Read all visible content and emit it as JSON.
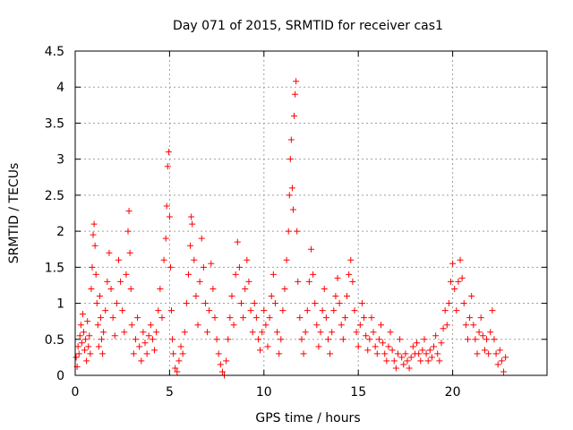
{
  "chart_data": {
    "type": "scatter",
    "title": "Day 071 of 2015, SRMTID for receiver cas1",
    "xlabel": "GPS time / hours",
    "ylabel": "SRMTID / TECUs",
    "xlim": [
      0,
      25
    ],
    "ylim": [
      0,
      4.5
    ],
    "x_ticks": [
      0,
      5,
      10,
      15,
      20
    ],
    "y_ticks": [
      0,
      0.5,
      1,
      1.5,
      2,
      2.5,
      3,
      3.5,
      4,
      4.5
    ],
    "x_tick_labels": [
      "0",
      "5",
      "10",
      "15",
      "20"
    ],
    "y_tick_labels": [
      "0",
      "0.5",
      "1",
      "1.5",
      "2",
      "2.5",
      "3",
      "3.5",
      "4",
      "4.5"
    ],
    "grid": true,
    "marker": "+",
    "series": [
      {
        "name": "SRMTID",
        "color": "#ff0000",
        "points": [
          [
            0.05,
            0.25
          ],
          [
            0.1,
            0.12
          ],
          [
            0.15,
            0.4
          ],
          [
            0.2,
            0.3
          ],
          [
            0.25,
            0.55
          ],
          [
            0.3,
            0.7
          ],
          [
            0.35,
            0.45
          ],
          [
            0.4,
            0.85
          ],
          [
            0.45,
            0.6
          ],
          [
            0.5,
            0.35
          ],
          [
            0.55,
            0.5
          ],
          [
            0.6,
            0.2
          ],
          [
            0.65,
            0.75
          ],
          [
            0.7,
            0.4
          ],
          [
            0.75,
            0.55
          ],
          [
            0.8,
            0.3
          ],
          [
            0.85,
            1.2
          ],
          [
            0.9,
            1.5
          ],
          [
            0.95,
            1.95
          ],
          [
            1.0,
            2.1
          ],
          [
            1.05,
            1.8
          ],
          [
            1.1,
            1.4
          ],
          [
            1.15,
            1.0
          ],
          [
            1.2,
            0.7
          ],
          [
            1.25,
            0.4
          ],
          [
            1.3,
            1.1
          ],
          [
            1.35,
            0.8
          ],
          [
            1.4,
            0.5
          ],
          [
            1.45,
            0.3
          ],
          [
            1.5,
            0.6
          ],
          [
            1.6,
            0.9
          ],
          [
            1.7,
            1.3
          ],
          [
            1.8,
            1.7
          ],
          [
            1.9,
            1.2
          ],
          [
            2.0,
            0.8
          ],
          [
            2.1,
            0.55
          ],
          [
            2.2,
            1.0
          ],
          [
            2.3,
            1.6
          ],
          [
            2.4,
            1.3
          ],
          [
            2.5,
            0.9
          ],
          [
            2.6,
            0.6
          ],
          [
            2.7,
            1.4
          ],
          [
            2.8,
            2.0
          ],
          [
            2.85,
            2.28
          ],
          [
            2.9,
            1.7
          ],
          [
            2.95,
            1.2
          ],
          [
            3.0,
            0.7
          ],
          [
            3.1,
            0.3
          ],
          [
            3.2,
            0.5
          ],
          [
            3.3,
            0.8
          ],
          [
            3.4,
            0.4
          ],
          [
            3.5,
            0.2
          ],
          [
            3.6,
            0.6
          ],
          [
            3.7,
            0.45
          ],
          [
            3.8,
            0.3
          ],
          [
            3.9,
            0.55
          ],
          [
            4.0,
            0.7
          ],
          [
            4.1,
            0.5
          ],
          [
            4.2,
            0.35
          ],
          [
            4.3,
            0.6
          ],
          [
            4.4,
            0.9
          ],
          [
            4.5,
            1.2
          ],
          [
            4.6,
            0.8
          ],
          [
            4.7,
            1.6
          ],
          [
            4.8,
            1.9
          ],
          [
            4.85,
            2.35
          ],
          [
            4.9,
            2.9
          ],
          [
            4.95,
            3.1
          ],
          [
            5.0,
            2.2
          ],
          [
            5.05,
            1.5
          ],
          [
            5.1,
            0.9
          ],
          [
            5.15,
            0.5
          ],
          [
            5.2,
            0.3
          ],
          [
            5.3,
            0.1
          ],
          [
            5.4,
            0.05
          ],
          [
            5.5,
            0.2
          ],
          [
            5.6,
            0.4
          ],
          [
            5.7,
            0.3
          ],
          [
            5.8,
            0.6
          ],
          [
            5.9,
            1.0
          ],
          [
            6.0,
            1.4
          ],
          [
            6.1,
            1.8
          ],
          [
            6.15,
            2.2
          ],
          [
            6.2,
            2.1
          ],
          [
            6.3,
            1.6
          ],
          [
            6.4,
            1.1
          ],
          [
            6.5,
            0.7
          ],
          [
            6.6,
            1.3
          ],
          [
            6.7,
            1.9
          ],
          [
            6.8,
            1.5
          ],
          [
            6.9,
            1.0
          ],
          [
            7.0,
            0.6
          ],
          [
            7.1,
            0.9
          ],
          [
            7.2,
            1.55
          ],
          [
            7.3,
            1.2
          ],
          [
            7.4,
            0.8
          ],
          [
            7.5,
            0.5
          ],
          [
            7.6,
            0.3
          ],
          [
            7.7,
            0.15
          ],
          [
            7.8,
            0.05
          ],
          [
            7.9,
            0.0
          ],
          [
            8.0,
            0.2
          ],
          [
            8.1,
            0.5
          ],
          [
            8.2,
            0.8
          ],
          [
            8.3,
            1.1
          ],
          [
            8.4,
            0.7
          ],
          [
            8.5,
            1.4
          ],
          [
            8.6,
            1.85
          ],
          [
            8.7,
            1.5
          ],
          [
            8.8,
            1.0
          ],
          [
            8.9,
            0.8
          ],
          [
            9.0,
            1.2
          ],
          [
            9.1,
            1.6
          ],
          [
            9.2,
            1.3
          ],
          [
            9.3,
            0.9
          ],
          [
            9.4,
            0.6
          ],
          [
            9.5,
            1.0
          ],
          [
            9.6,
            0.8
          ],
          [
            9.7,
            0.5
          ],
          [
            9.8,
            0.35
          ],
          [
            9.9,
            0.6
          ],
          [
            10.0,
            0.9
          ],
          [
            10.1,
            0.7
          ],
          [
            10.2,
            0.4
          ],
          [
            10.3,
            0.8
          ],
          [
            10.4,
            1.1
          ],
          [
            10.5,
            1.4
          ],
          [
            10.6,
            1.0
          ],
          [
            10.7,
            0.6
          ],
          [
            10.8,
            0.3
          ],
          [
            10.9,
            0.5
          ],
          [
            11.0,
            0.9
          ],
          [
            11.1,
            1.2
          ],
          [
            11.2,
            1.6
          ],
          [
            11.3,
            2.0
          ],
          [
            11.35,
            2.5
          ],
          [
            11.4,
            3.0
          ],
          [
            11.45,
            3.27
          ],
          [
            11.5,
            2.6
          ],
          [
            11.55,
            2.3
          ],
          [
            11.6,
            3.6
          ],
          [
            11.65,
            3.9
          ],
          [
            11.7,
            4.08
          ],
          [
            11.75,
            2.0
          ],
          [
            11.8,
            1.3
          ],
          [
            11.9,
            0.8
          ],
          [
            12.0,
            0.5
          ],
          [
            12.1,
            0.3
          ],
          [
            12.2,
            0.6
          ],
          [
            12.3,
            0.9
          ],
          [
            12.4,
            1.3
          ],
          [
            12.5,
            1.75
          ],
          [
            12.6,
            1.4
          ],
          [
            12.7,
            1.0
          ],
          [
            12.8,
            0.7
          ],
          [
            12.9,
            0.4
          ],
          [
            13.0,
            0.6
          ],
          [
            13.1,
            0.9
          ],
          [
            13.2,
            1.2
          ],
          [
            13.3,
            0.8
          ],
          [
            13.4,
            0.5
          ],
          [
            13.5,
            0.3
          ],
          [
            13.6,
            0.6
          ],
          [
            13.7,
            0.9
          ],
          [
            13.8,
            1.1
          ],
          [
            13.9,
            1.35
          ],
          [
            14.0,
            1.0
          ],
          [
            14.1,
            0.7
          ],
          [
            14.2,
            0.5
          ],
          [
            14.3,
            0.8
          ],
          [
            14.4,
            1.1
          ],
          [
            14.5,
            1.4
          ],
          [
            14.6,
            1.6
          ],
          [
            14.7,
            1.3
          ],
          [
            14.8,
            0.9
          ],
          [
            14.9,
            0.6
          ],
          [
            15.0,
            0.4
          ],
          [
            15.1,
            0.7
          ],
          [
            15.2,
            1.0
          ],
          [
            15.3,
            0.8
          ],
          [
            15.4,
            0.55
          ],
          [
            15.5,
            0.35
          ],
          [
            15.6,
            0.5
          ],
          [
            15.7,
            0.8
          ],
          [
            15.8,
            0.6
          ],
          [
            15.9,
            0.4
          ],
          [
            16.0,
            0.3
          ],
          [
            16.1,
            0.5
          ],
          [
            16.2,
            0.7
          ],
          [
            16.3,
            0.45
          ],
          [
            16.4,
            0.3
          ],
          [
            16.5,
            0.2
          ],
          [
            16.6,
            0.4
          ],
          [
            16.7,
            0.6
          ],
          [
            16.8,
            0.35
          ],
          [
            16.9,
            0.2
          ],
          [
            17.0,
            0.1
          ],
          [
            17.1,
            0.3
          ],
          [
            17.2,
            0.5
          ],
          [
            17.3,
            0.25
          ],
          [
            17.4,
            0.15
          ],
          [
            17.5,
            0.3
          ],
          [
            17.6,
            0.2
          ],
          [
            17.7,
            0.1
          ],
          [
            17.8,
            0.25
          ],
          [
            17.9,
            0.4
          ],
          [
            18.0,
            0.3
          ],
          [
            18.1,
            0.45
          ],
          [
            18.2,
            0.3
          ],
          [
            18.3,
            0.2
          ],
          [
            18.4,
            0.35
          ],
          [
            18.5,
            0.5
          ],
          [
            18.6,
            0.3
          ],
          [
            18.7,
            0.2
          ],
          [
            18.8,
            0.35
          ],
          [
            18.9,
            0.25
          ],
          [
            19.0,
            0.4
          ],
          [
            19.1,
            0.55
          ],
          [
            19.2,
            0.3
          ],
          [
            19.3,
            0.2
          ],
          [
            19.4,
            0.45
          ],
          [
            19.5,
            0.65
          ],
          [
            19.6,
            0.9
          ],
          [
            19.7,
            0.7
          ],
          [
            19.8,
            1.0
          ],
          [
            19.9,
            1.3
          ],
          [
            20.0,
            1.55
          ],
          [
            20.1,
            1.2
          ],
          [
            20.2,
            0.9
          ],
          [
            20.3,
            1.3
          ],
          [
            20.4,
            1.6
          ],
          [
            20.5,
            1.35
          ],
          [
            20.6,
            1.0
          ],
          [
            20.7,
            0.7
          ],
          [
            20.8,
            0.5
          ],
          [
            20.9,
            0.8
          ],
          [
            21.0,
            1.1
          ],
          [
            21.1,
            0.7
          ],
          [
            21.2,
            0.5
          ],
          [
            21.3,
            0.3
          ],
          [
            21.4,
            0.6
          ],
          [
            21.5,
            0.8
          ],
          [
            21.6,
            0.55
          ],
          [
            21.7,
            0.35
          ],
          [
            21.8,
            0.5
          ],
          [
            21.9,
            0.3
          ],
          [
            22.0,
            0.6
          ],
          [
            22.1,
            0.9
          ],
          [
            22.2,
            0.5
          ],
          [
            22.3,
            0.3
          ],
          [
            22.4,
            0.15
          ],
          [
            22.5,
            0.35
          ],
          [
            22.6,
            0.2
          ],
          [
            22.7,
            0.05
          ],
          [
            22.8,
            0.25
          ]
        ]
      }
    ]
  }
}
